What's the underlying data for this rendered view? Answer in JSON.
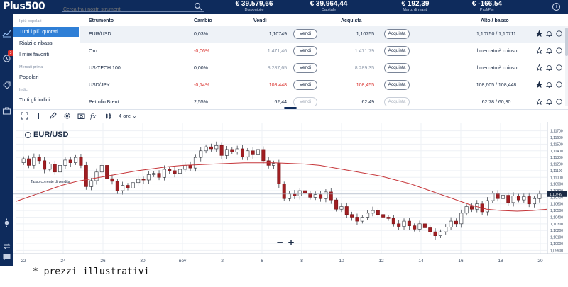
{
  "header": {
    "logo": "Plus500",
    "search_placeholder": "Cerca fra i nostri strumenti",
    "stats": [
      {
        "value": "€ 39.579,66",
        "label": "Disponibile"
      },
      {
        "value": "€ 39.964,44",
        "label": "Capitale"
      },
      {
        "value": "€ 192,39",
        "label": "Marg. di mant."
      },
      {
        "value": "€ -166,54",
        "label": "Prof/Per"
      }
    ],
    "info_label": "i"
  },
  "rail": {
    "icons": [
      "chart-line-icon",
      "refresh-clock-icon",
      "tag-icon",
      "briefcase-icon",
      "sun-icon",
      "swap-icon",
      "chat-icon"
    ],
    "badge": "3"
  },
  "sidebar": {
    "section1": "I più popolari",
    "items1": [
      "Tutti i più quotati",
      "Rialzi e ribassi",
      "I miei favoriti"
    ],
    "section2": "Mercati prima",
    "items2": [
      "Popolari"
    ],
    "section3": "Indici",
    "items3": [
      "Tutti gli indici"
    ]
  },
  "table": {
    "headers": {
      "instrument": "Strumento",
      "change": "Cambio",
      "sell": "Vendi",
      "buy": "Acquista",
      "highlow": "Alto / basso"
    },
    "sell_label": "Vendi",
    "buy_label": "Acquista",
    "rows": [
      {
        "name": "EUR/USD",
        "change": "0,03%",
        "sell": "1,10749",
        "buy": "1,10755",
        "highlow": "1,10750 / 1,10711",
        "starred": true
      },
      {
        "name": "Oro",
        "change": "-0,06%",
        "sell": "1.471,46",
        "buy": "1.471,79",
        "highlow": "Il mercato è chiuso",
        "starred": false
      },
      {
        "name": "US-TECH 100",
        "change": "0,00%",
        "sell": "8.287,65",
        "buy": "8.289,35",
        "highlow": "Il mercato è chiuso",
        "starred": false
      },
      {
        "name": "USD/JPY",
        "change": "-0,14%",
        "sell": "108,448",
        "buy": "108,455",
        "highlow": "108,605 / 108,448",
        "starred": true
      },
      {
        "name": "Petrolio Brent",
        "change": "2,55%",
        "sell": "62,44",
        "buy": "62,49",
        "highlow": "62,78 / 60,30",
        "starred": false
      }
    ]
  },
  "chart_toolbar": {
    "timeframe": "4 ore"
  },
  "chart_data": {
    "type": "candlestick",
    "title": "EUR/USD",
    "annotation": "Tasso corrente di vendita",
    "x_ticks": [
      "22",
      "24",
      "26",
      "30",
      "nov",
      "2",
      "6",
      "8",
      "10",
      "12",
      "14",
      "16",
      "18",
      "20"
    ],
    "y_ticks": [
      "1,11700",
      "1,11600",
      "1,11500",
      "1,11400",
      "1,11300",
      "1,11200",
      "1,11100",
      "1,11000",
      "1,10900",
      "1,10800",
      "1,10700",
      "1,10600",
      "1,10500",
      "1,10400",
      "1,10300",
      "1,10200",
      "1,10100",
      "1,10000",
      "1,09900"
    ],
    "current_price_label": "1,10749",
    "ylim": [
      1.0985,
      1.1175
    ],
    "zoom_minus": "−",
    "zoom_plus": "+",
    "candles": [
      [
        1.1122,
        1.1128
      ],
      [
        1.1128,
        1.1118
      ],
      [
        1.1118,
        1.113
      ],
      [
        1.113,
        1.1125
      ],
      [
        1.1125,
        1.1112
      ],
      [
        1.1112,
        1.112
      ],
      [
        1.112,
        1.1108
      ],
      [
        1.1108,
        1.1118
      ],
      [
        1.1118,
        1.1126
      ],
      [
        1.1126,
        1.1122
      ],
      [
        1.1122,
        1.113
      ],
      [
        1.113,
        1.1118
      ],
      [
        1.1118,
        1.1086
      ],
      [
        1.1086,
        1.1095
      ],
      [
        1.1095,
        1.1108
      ],
      [
        1.1108,
        1.1118
      ],
      [
        1.1118,
        1.1098
      ],
      [
        1.1098,
        1.1094
      ],
      [
        1.1094,
        1.108
      ],
      [
        1.108,
        1.1088
      ],
      [
        1.1088,
        1.1084
      ],
      [
        1.1084,
        1.1092
      ],
      [
        1.1092,
        1.1097
      ],
      [
        1.1097,
        1.1096
      ],
      [
        1.1096,
        1.1104
      ],
      [
        1.1104,
        1.1106
      ],
      [
        1.1106,
        1.11
      ],
      [
        1.11,
        1.1112
      ],
      [
        1.1112,
        1.111
      ],
      [
        1.111,
        1.1106
      ],
      [
        1.1106,
        1.1112
      ],
      [
        1.1112,
        1.1118
      ],
      [
        1.1118,
        1.1114
      ],
      [
        1.1114,
        1.113
      ],
      [
        1.113,
        1.114
      ],
      [
        1.114,
        1.1146
      ],
      [
        1.1146,
        1.1143
      ],
      [
        1.1143,
        1.1148
      ],
      [
        1.1148,
        1.1133
      ],
      [
        1.1133,
        1.1142
      ],
      [
        1.1142,
        1.1138
      ],
      [
        1.1138,
        1.1143
      ],
      [
        1.1143,
        1.1131
      ],
      [
        1.1131,
        1.114
      ],
      [
        1.114,
        1.1134
      ],
      [
        1.1134,
        1.1142
      ],
      [
        1.1142,
        1.1125
      ],
      [
        1.1125,
        1.1118
      ],
      [
        1.1118,
        1.1121
      ],
      [
        1.1121,
        1.109
      ],
      [
        1.109,
        1.1068
      ],
      [
        1.1068,
        1.1075
      ],
      [
        1.1075,
        1.1072
      ],
      [
        1.1072,
        1.108
      ],
      [
        1.108,
        1.1076
      ],
      [
        1.1076,
        1.107
      ],
      [
        1.107,
        1.1074
      ],
      [
        1.1074,
        1.1068
      ],
      [
        1.1068,
        1.1078
      ],
      [
        1.1078,
        1.1066
      ],
      [
        1.1066,
        1.1052
      ],
      [
        1.1052,
        1.1056
      ],
      [
        1.1056,
        1.1044
      ],
      [
        1.1044,
        1.104
      ],
      [
        1.104,
        1.1034
      ],
      [
        1.1034,
        1.104
      ],
      [
        1.104,
        1.1046
      ],
      [
        1.1046,
        1.105
      ],
      [
        1.105,
        1.1044
      ],
      [
        1.1044,
        1.104
      ],
      [
        1.104,
        1.1038
      ],
      [
        1.1038,
        1.103
      ],
      [
        1.103,
        1.1026
      ],
      [
        1.1026,
        1.1034
      ],
      [
        1.1034,
        1.1027
      ],
      [
        1.1027,
        1.1022
      ],
      [
        1.1022,
        1.103
      ],
      [
        1.103,
        1.1024
      ],
      [
        1.1024,
        1.1018
      ],
      [
        1.1018,
        1.1012
      ],
      [
        1.1012,
        1.1018
      ],
      [
        1.1018,
        1.1025
      ],
      [
        1.1025,
        1.1034
      ],
      [
        1.1034,
        1.103
      ],
      [
        1.103,
        1.1046
      ],
      [
        1.1046,
        1.1056
      ],
      [
        1.1056,
        1.1052
      ],
      [
        1.1052,
        1.106
      ],
      [
        1.106,
        1.1048
      ],
      [
        1.1048,
        1.1065
      ],
      [
        1.1065,
        1.1076
      ],
      [
        1.1076,
        1.1068
      ],
      [
        1.1068,
        1.1073
      ],
      [
        1.1073,
        1.1062
      ],
      [
        1.1062,
        1.1072
      ],
      [
        1.1072,
        1.1066
      ],
      [
        1.1066,
        1.1071
      ],
      [
        1.1071,
        1.106
      ],
      [
        1.106,
        1.1068
      ],
      [
        1.1068,
        1.1075
      ]
    ],
    "moving_average": [
      1.1064,
      1.1072,
      1.108,
      1.1088,
      1.1094,
      1.1098,
      1.1102,
      1.1106,
      1.111,
      1.1113,
      1.1116,
      1.1118,
      1.1119,
      1.112,
      1.1121,
      1.1122,
      1.1122,
      1.1122,
      1.1121,
      1.112,
      1.1118,
      1.1114,
      1.111,
      1.1106,
      1.1102,
      1.1096,
      1.109,
      1.1082,
      1.1074,
      1.1066,
      1.1058,
      1.1052,
      1.105,
      1.1049,
      1.105,
      1.1052
    ]
  },
  "disclaimer": "* prezzi illustrativi"
}
